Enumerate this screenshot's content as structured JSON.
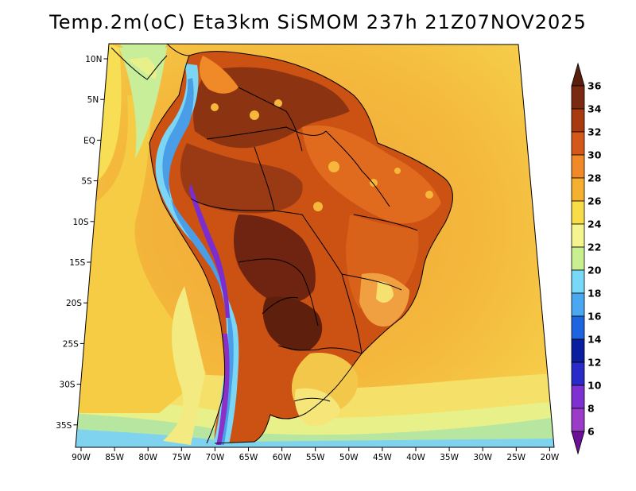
{
  "title": "Temp.2m(oC) Eta3km SiSMOM 237h 21Z07NOV2025",
  "lon_labels": [
    "90W",
    "85W",
    "80W",
    "75W",
    "70W",
    "65W",
    "60W",
    "55W",
    "50W",
    "45W",
    "40W",
    "35W",
    "30W",
    "25W",
    "20W"
  ],
  "lat_labels": [
    "10N",
    "5N",
    "EQ",
    "5S",
    "10S",
    "15S",
    "20S",
    "25S",
    "30S",
    "35S"
  ],
  "colorbar": {
    "labels": [
      "36",
      "34",
      "32",
      "30",
      "28",
      "26",
      "24",
      "22",
      "20",
      "18",
      "16",
      "14",
      "12",
      "10",
      "8",
      "6"
    ],
    "colors": [
      "#5a1e0c",
      "#7a2a10",
      "#a83a10",
      "#d4581a",
      "#f08a28",
      "#f5b030",
      "#f8dc48",
      "#f5f590",
      "#c8f090",
      "#78d8f8",
      "#4aa8f0",
      "#1e64e0",
      "#0a1ea0",
      "#2a2ac8",
      "#7e30d0",
      "#9a3cc8",
      "#6c1098"
    ]
  },
  "colors": {
    "ocean_far": "#f8e45a",
    "ocean_near": "#f3b13a",
    "land_hot": "#8a3010",
    "coastline": "#000000"
  }
}
